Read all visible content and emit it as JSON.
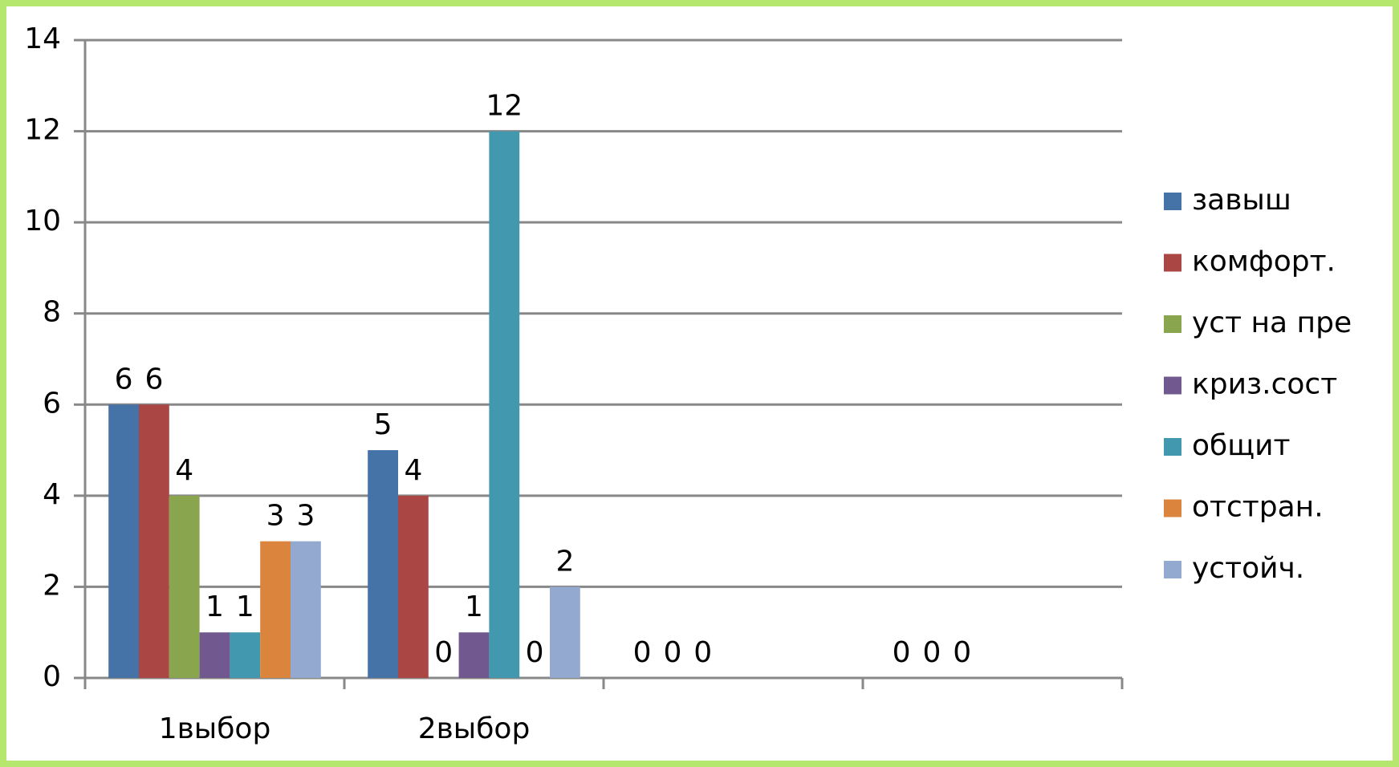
{
  "chart_data": {
    "type": "bar",
    "categories": [
      "1выбор",
      "2выбор",
      null,
      null
    ],
    "series": [
      {
        "name": "завыш",
        "color": "#4572a7",
        "values": [
          6,
          5,
          0,
          0
        ]
      },
      {
        "name": "комфорт.",
        "color": "#aa4643",
        "values": [
          6,
          4,
          0,
          0
        ]
      },
      {
        "name": "уст на пре",
        "color": "#89a54e",
        "values": [
          4,
          0,
          0,
          0
        ]
      },
      {
        "name": "криз.сост",
        "color": "#71588f",
        "values": [
          1,
          1,
          null,
          null
        ]
      },
      {
        "name": "общит",
        "color": "#4198af",
        "values": [
          1,
          12,
          null,
          null
        ]
      },
      {
        "name": "отстран.",
        "color": "#db843d",
        "values": [
          3,
          0,
          null,
          null
        ]
      },
      {
        "name": "устойч.",
        "color": "#93a9cf",
        "values": [
          3,
          2,
          null,
          null
        ]
      }
    ],
    "ylim": [
      0,
      14
    ],
    "yticks": [
      0,
      2,
      4,
      6,
      8,
      10,
      12,
      14
    ],
    "grid": true,
    "legend": "right"
  }
}
